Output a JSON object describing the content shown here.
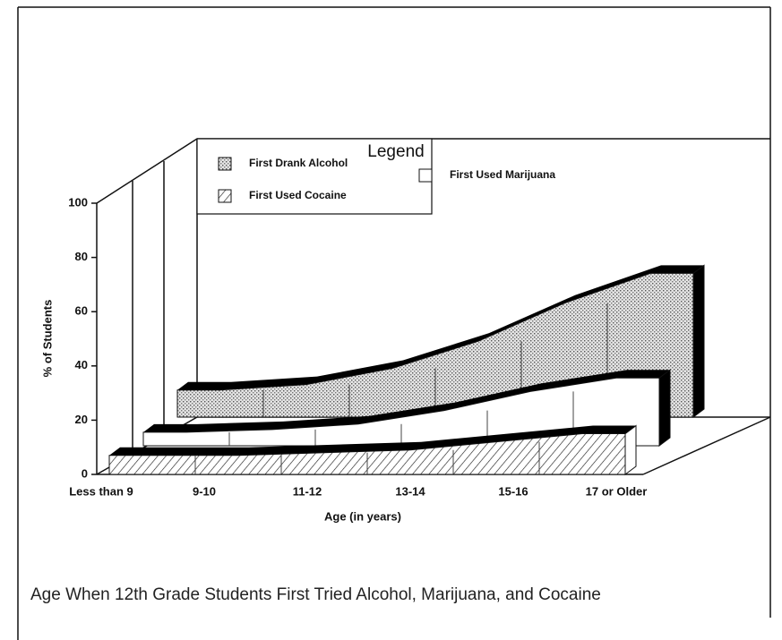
{
  "chart_data": {
    "type": "ribbon3d",
    "title": "Age When 12th Grade Students First Tried Alcohol, Marijuana, and Cocaine",
    "x_label": "Age (in years)",
    "y_label": "% of Students",
    "legend_title": "Legend",
    "categories": [
      "Less than 9",
      "9-10",
      "11-12",
      "13-14",
      "15-16",
      "17 or Older"
    ],
    "series": [
      {
        "name": "First Drank Alcohol",
        "color": "#d8d8d8",
        "values": [
          10,
          12,
          18,
          28,
          42,
          53
        ]
      },
      {
        "name": "First Used Marijuana",
        "color": "#ffffff",
        "values": [
          5,
          6,
          8,
          13,
          20,
          25
        ]
      },
      {
        "name": "First Used Cocaine",
        "color": "#ffffff",
        "values": [
          7,
          7,
          8,
          9,
          12,
          15
        ]
      }
    ],
    "ylim": [
      0,
      100
    ],
    "yticks": [
      0,
      20,
      40,
      60,
      80,
      100
    ]
  }
}
